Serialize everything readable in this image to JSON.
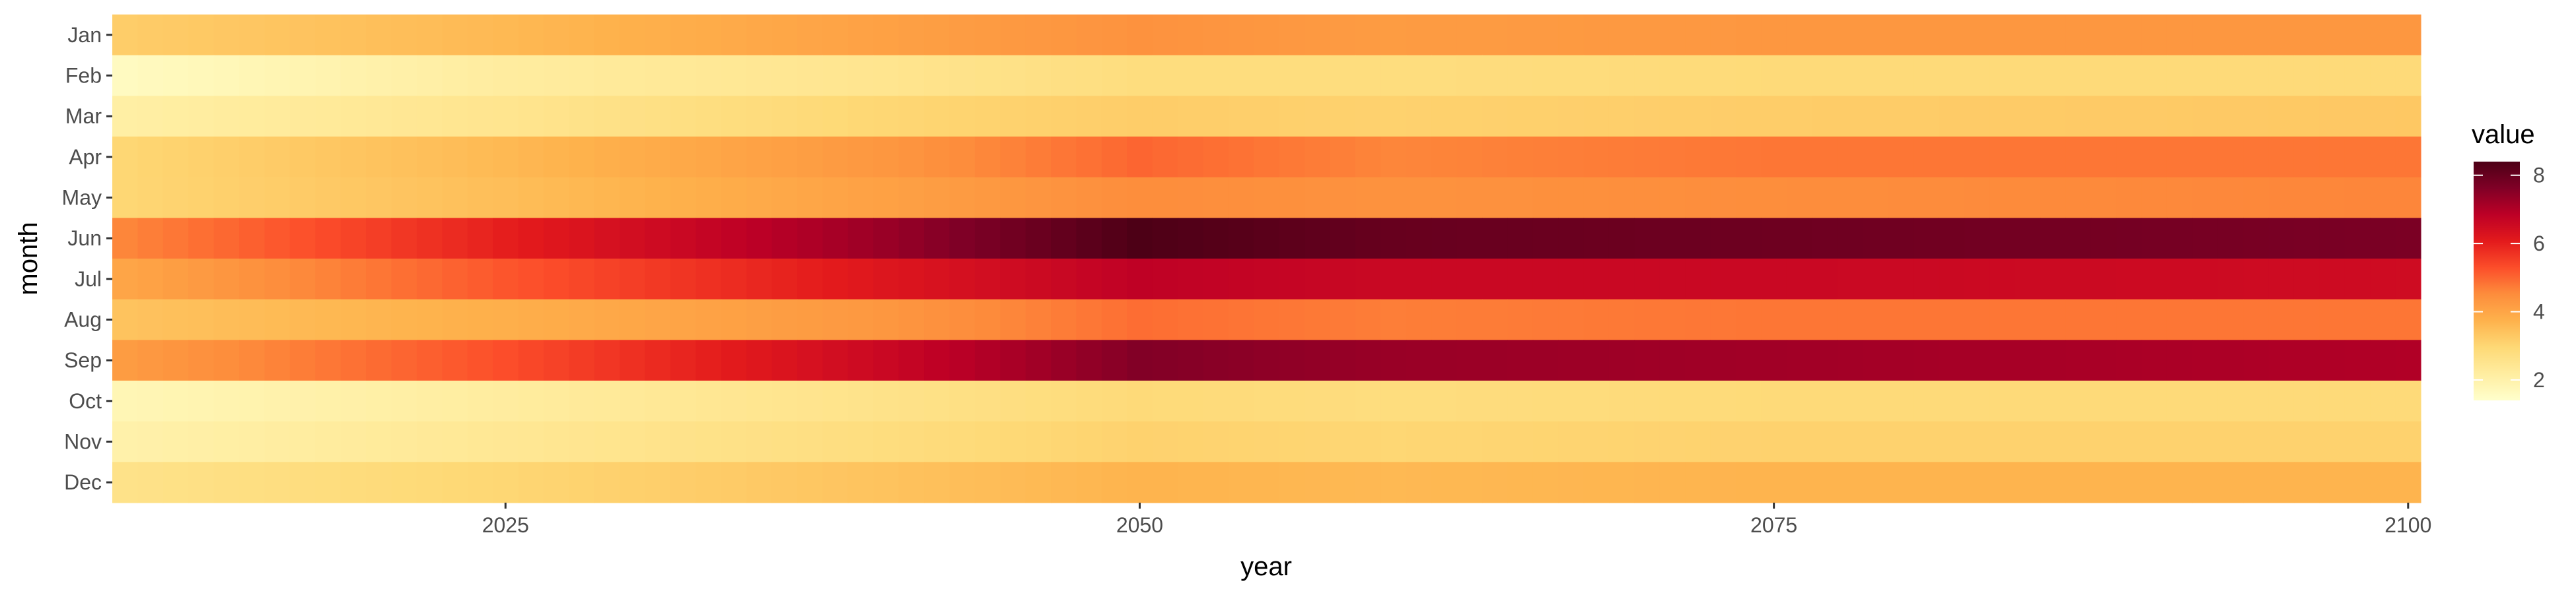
{
  "chart_data": {
    "type": "heatmap",
    "title": "",
    "xlabel": "year",
    "ylabel": "month",
    "x_range": [
      2010,
      2100
    ],
    "x_ticks": [
      2025,
      2050,
      2075,
      2100
    ],
    "x_tick_labels": [
      "2025",
      "2050",
      "2075",
      "2100"
    ],
    "y_categories": [
      "Jan",
      "Feb",
      "Mar",
      "Apr",
      "May",
      "Jun",
      "Jul",
      "Aug",
      "Sep",
      "Oct",
      "Nov",
      "Dec"
    ],
    "value_range": [
      1.4,
      8.4
    ],
    "legend": {
      "title": "value",
      "position": "right",
      "ticks": [
        2,
        4,
        6,
        8
      ],
      "tick_labels": [
        "2",
        "4",
        "6",
        "8"
      ]
    },
    "color_scale": [
      "#ffffcc",
      "#ffeda0",
      "#fed976",
      "#feb24c",
      "#fd8d3c",
      "#fc4e2a",
      "#e31a1c",
      "#bd0026",
      "#800026",
      "#4d0016"
    ],
    "grid": false,
    "rows": [
      {
        "month": "Jan",
        "years": [
          2010,
          2025,
          2040,
          2050,
          2060,
          2075,
          2100
        ],
        "values": [
          3.2,
          3.6,
          4.1,
          4.4,
          4.2,
          4.3,
          4.3
        ]
      },
      {
        "month": "Feb",
        "years": [
          2010,
          2025,
          2040,
          2050,
          2060,
          2075,
          2100
        ],
        "values": [
          1.6,
          2.2,
          2.5,
          2.8,
          2.8,
          2.9,
          2.9
        ]
      },
      {
        "month": "Mar",
        "years": [
          2010,
          2025,
          2040,
          2050,
          2060,
          2075,
          2100
        ],
        "values": [
          2.1,
          2.5,
          3.0,
          3.2,
          3.1,
          3.2,
          3.3
        ]
      },
      {
        "month": "Apr",
        "years": [
          2010,
          2025,
          2040,
          2050,
          2060,
          2075,
          2100
        ],
        "values": [
          3.0,
          3.6,
          4.3,
          5.0,
          4.6,
          4.8,
          4.8
        ]
      },
      {
        "month": "May",
        "years": [
          2010,
          2025,
          2040,
          2050,
          2060,
          2075,
          2100
        ],
        "values": [
          3.0,
          3.5,
          4.1,
          4.5,
          4.4,
          4.5,
          4.6
        ]
      },
      {
        "month": "Jun",
        "years": [
          2010,
          2025,
          2040,
          2050,
          2060,
          2075,
          2100
        ],
        "values": [
          4.6,
          6.0,
          7.3,
          8.4,
          8.0,
          7.9,
          7.7
        ]
      },
      {
        "month": "Jul",
        "years": [
          2010,
          2025,
          2040,
          2050,
          2060,
          2075,
          2100
        ],
        "values": [
          4.0,
          5.2,
          6.2,
          6.8,
          6.6,
          6.6,
          6.5
        ]
      },
      {
        "month": "Aug",
        "years": [
          2010,
          2025,
          2040,
          2050,
          2060,
          2075,
          2100
        ],
        "values": [
          3.4,
          3.8,
          4.3,
          4.9,
          4.7,
          4.8,
          4.8
        ]
      },
      {
        "month": "Sep",
        "years": [
          2010,
          2025,
          2040,
          2050,
          2060,
          2075,
          2100
        ],
        "values": [
          4.2,
          5.3,
          6.6,
          7.6,
          7.3,
          7.2,
          7.0
        ]
      },
      {
        "month": "Oct",
        "years": [
          2010,
          2025,
          2040,
          2050,
          2060,
          2075,
          2100
        ],
        "values": [
          1.8,
          2.2,
          2.6,
          2.9,
          2.8,
          2.9,
          2.9
        ]
      },
      {
        "month": "Nov",
        "years": [
          2010,
          2025,
          2040,
          2050,
          2060,
          2075,
          2100
        ],
        "values": [
          2.0,
          2.4,
          2.8,
          3.1,
          3.0,
          3.1,
          3.1
        ]
      },
      {
        "month": "Dec",
        "years": [
          2010,
          2025,
          2040,
          2050,
          2060,
          2075,
          2100
        ],
        "values": [
          2.6,
          3.0,
          3.4,
          3.7,
          3.6,
          3.7,
          3.7
        ]
      }
    ]
  }
}
